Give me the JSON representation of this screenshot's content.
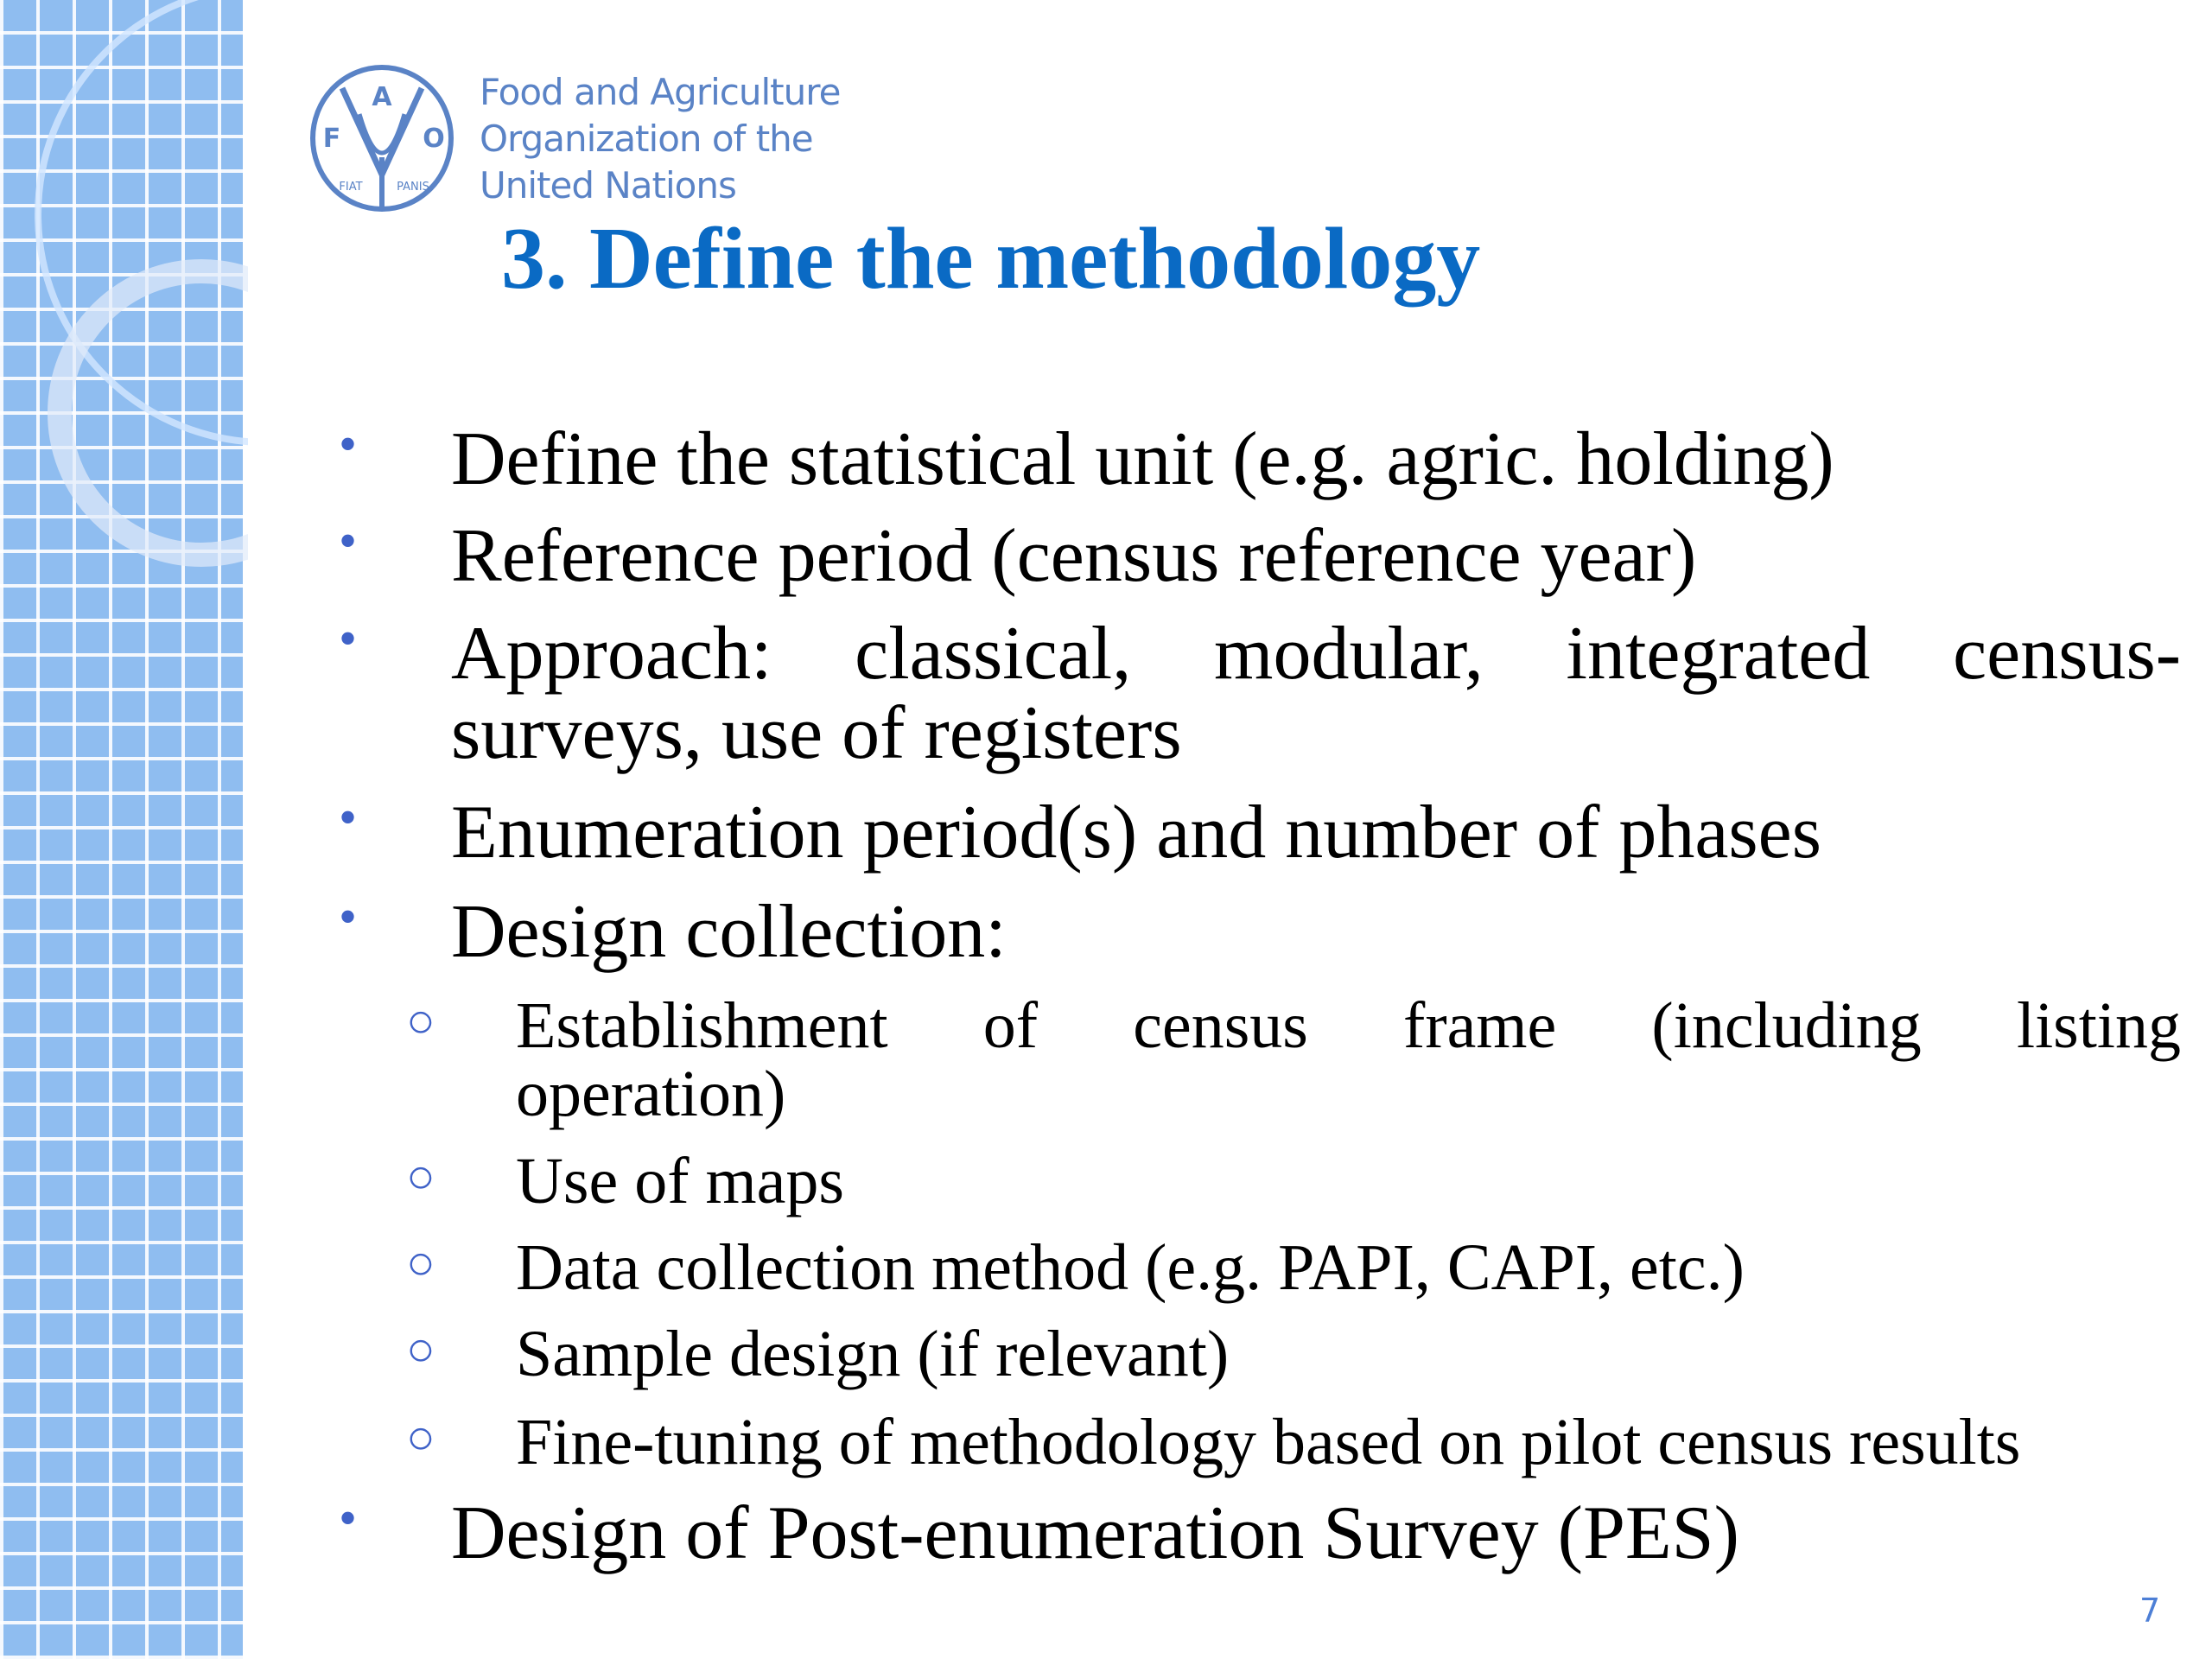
{
  "logo": {
    "letters": [
      "F",
      "A",
      "O"
    ],
    "motto": "FIAT PANIS",
    "org_name_lines": [
      "Food and Agriculture",
      "Organization of the",
      "United Nations"
    ]
  },
  "title": "3. Define the methodology",
  "bullets": [
    "Define the statistical unit (e.g. agric. holding)",
    "Reference period (census reference year)",
    "Approach: classical, modular, integrated census-",
    "surveys, use of registers",
    "Enumeration period(s) and number of phases",
    "Design collection:"
  ],
  "sub_bullets": [
    "Establishment of census frame (including listing",
    "operation)",
    "Use of maps",
    "Data collection method (e.g. PAPI, CAPI, etc.)",
    "Sample design (if relevant)",
    "Fine-tuning of methodology based on pilot census results"
  ],
  "last_bullet": "Design of Post-enumeration Survey (PES)",
  "bullet_glyph": "•",
  "sub_bullet_glyph": "○",
  "page_number": "7",
  "colors": {
    "title": "#0a6ac4",
    "logo": "#5a83c6",
    "bullet": "#3f62c8",
    "strip": "#8fbdf0"
  }
}
